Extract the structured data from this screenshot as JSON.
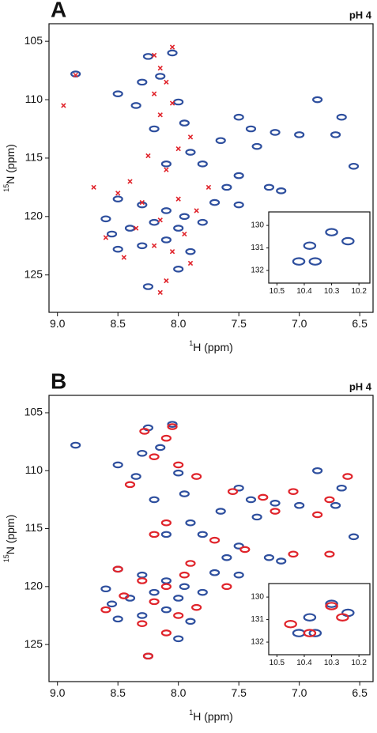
{
  "chart_data": [
    {
      "type": "scatter",
      "panel": "A",
      "annotation": "pH 4",
      "xlabel_sup": "1",
      "xlabel": "H  (ppm)",
      "ylabel_sup": "15",
      "ylabel": "N (ppm)",
      "xlim": [
        9.07,
        6.39
      ],
      "ylim": [
        128.2,
        103.5
      ],
      "xticks": [
        {
          "value": 9,
          "label": "9.0"
        },
        8.5,
        {
          "value": 8,
          "label": "8.0"
        },
        7.5,
        {
          "value": 7,
          "label": "7.0"
        },
        6.5
      ],
      "yticks": [
        105,
        110,
        115,
        120,
        125
      ],
      "series": [
        {
          "color": "#2e4f9e",
          "marker": "contour",
          "x": [
            8.85,
            8.25,
            8.05,
            8.3,
            8.15,
            8.5,
            8.35,
            8.0,
            7.95,
            8.2,
            7.5,
            7.4,
            7.2,
            7.0,
            6.85,
            6.7,
            6.65,
            7.65,
            7.35,
            7.9,
            8.1,
            7.8,
            7.5,
            7.25,
            7.15,
            7.6,
            8.5,
            8.3,
            8.1,
            7.95,
            8.2,
            8.4,
            8.55,
            8.0,
            7.8,
            8.3,
            8.1,
            7.9,
            8.5,
            8.0,
            8.25,
            7.5,
            7.7,
            8.6,
            6.55
          ],
          "values": [
            107.8,
            106.3,
            106.0,
            108.5,
            108.0,
            109.5,
            110.5,
            110.2,
            112.0,
            112.5,
            111.5,
            112.5,
            112.8,
            113.0,
            110.0,
            113.0,
            111.5,
            113.5,
            114.0,
            114.5,
            115.5,
            115.5,
            116.5,
            117.5,
            117.8,
            117.5,
            118.5,
            119.0,
            119.5,
            120.0,
            120.5,
            121.0,
            121.5,
            121.0,
            120.5,
            122.5,
            122.0,
            123.0,
            122.8,
            124.5,
            126.0,
            119.0,
            118.8,
            120.2,
            115.7
          ]
        },
        {
          "color": "#e0242b",
          "marker": "cross",
          "x": [
            8.95,
            8.85,
            8.2,
            8.05,
            8.15,
            8.1,
            8.2,
            8.05,
            8.15,
            7.9,
            8.0,
            8.25,
            8.1,
            8.4,
            8.7,
            8.5,
            8.3,
            8.0,
            7.85,
            8.15,
            8.35,
            8.6,
            7.95,
            8.2,
            8.05,
            7.9,
            8.1,
            8.15,
            7.75,
            8.45
          ],
          "values": [
            110.5,
            107.9,
            106.2,
            105.5,
            107.3,
            108.5,
            109.5,
            110.3,
            111.3,
            113.2,
            114.2,
            114.8,
            116.0,
            117.0,
            117.5,
            118.0,
            118.8,
            118.5,
            119.5,
            120.3,
            121.0,
            121.8,
            121.5,
            122.5,
            123.0,
            124.0,
            125.5,
            126.5,
            117.5,
            123.5
          ]
        }
      ]
    },
    {
      "type": "scatter",
      "xlim": [
        10.53,
        10.16
      ],
      "ylim": [
        132.56,
        129.4
      ],
      "xticks": [
        10.5,
        10.4,
        10.3,
        10.2
      ],
      "yticks": [
        130,
        131,
        132
      ],
      "series": [
        {
          "color": "#2e4f9e",
          "marker": "contour",
          "x": [
            10.3,
            10.38,
            10.24,
            10.42,
            10.36
          ],
          "values": [
            130.3,
            130.9,
            130.7,
            131.6,
            131.6
          ]
        }
      ]
    },
    {
      "type": "scatter",
      "panel": "B",
      "annotation": "pH 4",
      "xlabel_sup": "1",
      "xlabel": "H  (ppm)",
      "ylabel_sup": "15",
      "ylabel": "N (ppm)",
      "xlim": [
        9.07,
        6.39
      ],
      "ylim": [
        128.2,
        103.5
      ],
      "xticks": [
        {
          "value": 9,
          "label": "9.0"
        },
        8.5,
        {
          "value": 8,
          "label": "8.0"
        },
        7.5,
        {
          "value": 7,
          "label": "7.0"
        },
        6.5
      ],
      "yticks": [
        105,
        110,
        115,
        120,
        125
      ],
      "series": [
        {
          "color": "#2e4f9e",
          "marker": "contour",
          "x": [
            8.85,
            8.25,
            8.05,
            8.3,
            8.15,
            8.5,
            8.35,
            8.0,
            7.95,
            8.2,
            7.5,
            7.4,
            7.2,
            7.0,
            6.85,
            6.7,
            6.65,
            7.65,
            7.35,
            7.9,
            8.1,
            7.8,
            7.5,
            7.25,
            7.15,
            7.6,
            8.5,
            8.3,
            8.1,
            7.95,
            8.2,
            8.4,
            8.55,
            8.0,
            7.8,
            8.3,
            8.1,
            7.9,
            8.5,
            8.0,
            8.25,
            7.5,
            7.7,
            8.6,
            6.55
          ],
          "values": [
            107.8,
            106.3,
            106.0,
            108.5,
            108.0,
            109.5,
            110.5,
            110.2,
            112.0,
            112.5,
            111.5,
            112.5,
            112.8,
            113.0,
            110.0,
            113.0,
            111.5,
            113.5,
            114.0,
            114.5,
            115.5,
            115.5,
            116.5,
            117.5,
            117.8,
            117.5,
            118.5,
            119.0,
            119.5,
            120.0,
            120.5,
            121.0,
            121.5,
            121.0,
            120.5,
            122.5,
            122.0,
            123.0,
            122.8,
            124.5,
            126.0,
            119.0,
            118.8,
            120.2,
            115.7
          ]
        },
        {
          "color": "#e0242b",
          "marker": "contour",
          "x": [
            8.28,
            8.05,
            8.1,
            8.2,
            8.0,
            8.4,
            7.85,
            7.55,
            7.3,
            7.2,
            6.85,
            6.75,
            6.6,
            6.75,
            7.05,
            7.45,
            7.7,
            8.1,
            8.2,
            8.5,
            8.3,
            8.1,
            7.95,
            8.2,
            8.45,
            8.6,
            8.0,
            8.3,
            7.85,
            8.1,
            8.25,
            7.6,
            7.9,
            7.05
          ],
          "values": [
            106.6,
            106.2,
            107.2,
            108.8,
            109.5,
            111.2,
            110.5,
            111.8,
            112.3,
            113.5,
            113.8,
            112.5,
            110.5,
            117.2,
            117.2,
            116.8,
            116.0,
            114.5,
            115.5,
            118.5,
            119.5,
            120.0,
            119.0,
            121.3,
            120.8,
            122.0,
            122.5,
            123.2,
            121.8,
            124.0,
            126.0,
            120.0,
            118.0,
            111.8
          ]
        }
      ]
    },
    {
      "type": "scatter",
      "xlim": [
        10.53,
        10.16
      ],
      "ylim": [
        132.56,
        129.4
      ],
      "xticks": [
        10.5,
        10.4,
        10.3,
        10.2
      ],
      "yticks": [
        130,
        131,
        132
      ],
      "series": [
        {
          "color": "#2e4f9e",
          "marker": "contour",
          "x": [
            10.3,
            10.38,
            10.24,
            10.42,
            10.36
          ],
          "values": [
            130.3,
            130.9,
            130.7,
            131.6,
            131.6
          ]
        },
        {
          "color": "#e0242b",
          "marker": "contour",
          "x": [
            10.3,
            10.26,
            10.45,
            10.38
          ],
          "values": [
            130.4,
            130.9,
            131.2,
            131.6
          ]
        }
      ]
    }
  ]
}
